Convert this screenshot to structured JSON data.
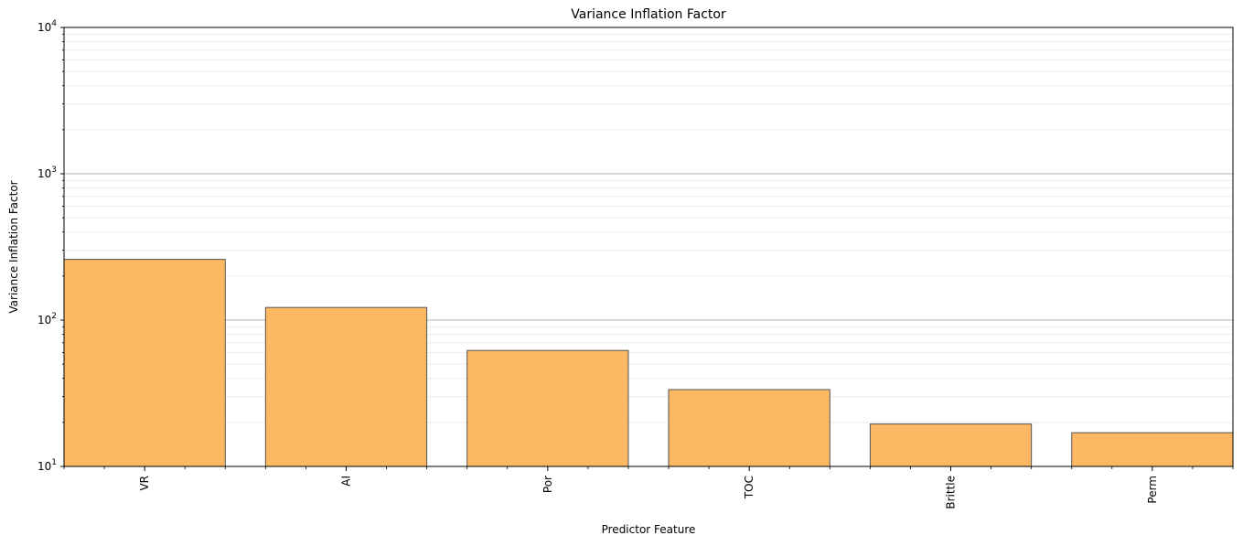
{
  "chart_data": {
    "type": "bar",
    "title": "Variance Inflation Factor",
    "xlabel": "Predictor Feature",
    "ylabel": "Variance Inflation Factor",
    "yscale": "log",
    "ylim": [
      10,
      10000
    ],
    "categories": [
      "VR",
      "AI",
      "Por",
      "TOC",
      "Brittle",
      "Perm"
    ],
    "values": [
      260,
      122,
      62,
      33.5,
      19.5,
      17
    ],
    "yticks": [
      {
        "base": "10",
        "exp": "1",
        "value": 10
      },
      {
        "base": "10",
        "exp": "2",
        "value": 100
      },
      {
        "base": "10",
        "exp": "3",
        "value": 1000
      },
      {
        "base": "10",
        "exp": "4",
        "value": 10000
      }
    ],
    "grid": true,
    "bar_color": "#fdb863",
    "bar_edge_color": "#555555",
    "major_grid_color": "#b0b0b0",
    "minor_grid_color": "#ececec"
  }
}
